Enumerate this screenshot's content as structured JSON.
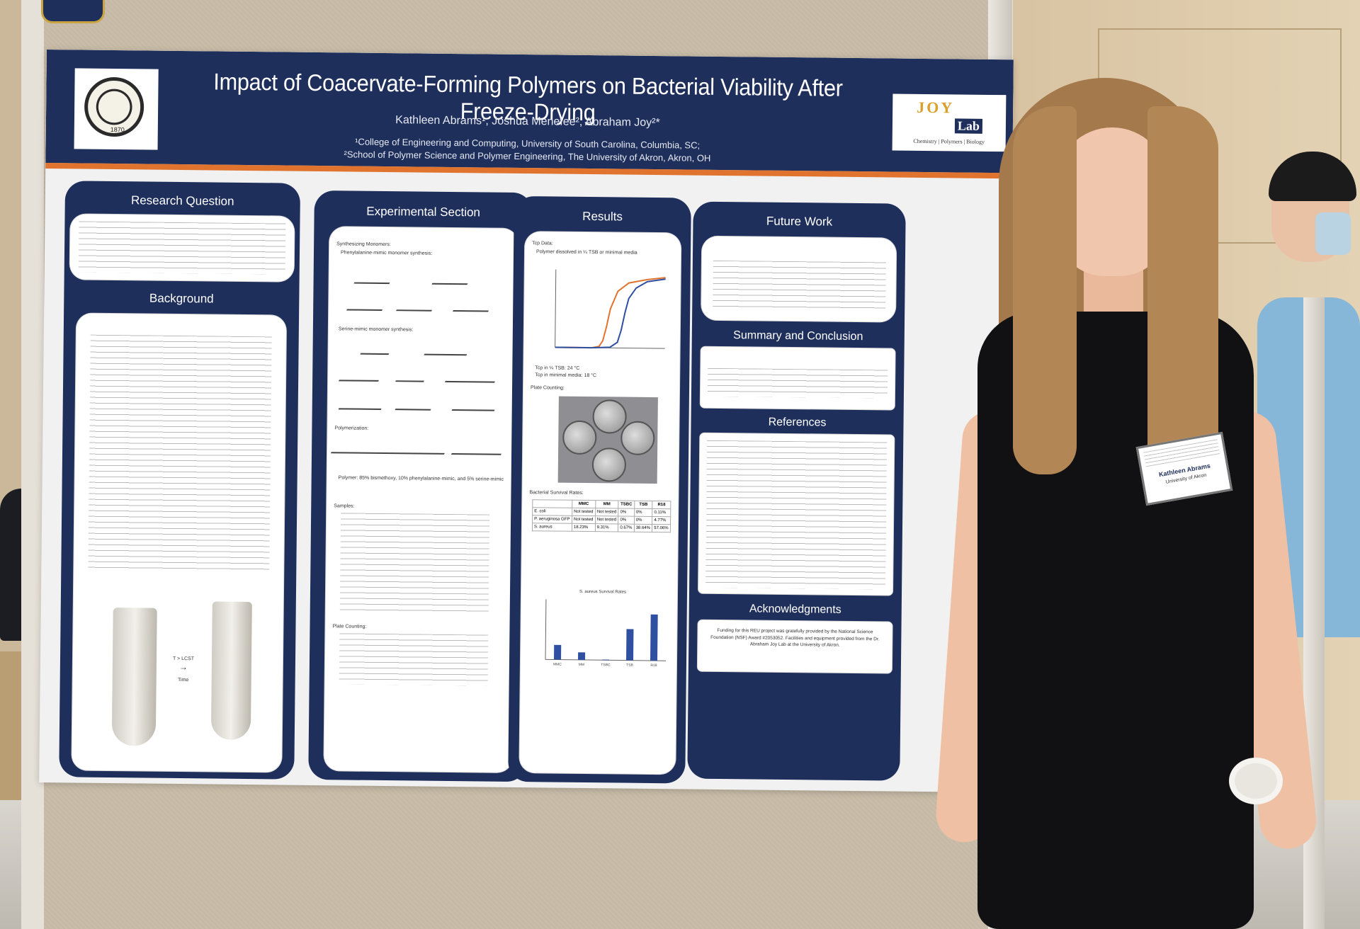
{
  "poster": {
    "title": "Impact of Coacervate-Forming Polymers on Bacterial Viability After Freeze-Drying",
    "authors": "Kathleen Abrams¹, Joshua Menefee², Abraham Joy²*",
    "affiliation_1": "¹College of Engineering and Computing, University of South Carolina, Columbia, SC;",
    "affiliation_2": "²School of Polymer Science and Polymer Engineering, The University of Akron, Akron, OH",
    "left_logo_year": "1870",
    "right_logo": {
      "joy": "JOY",
      "lab": "Lab",
      "subtitle": "Chemistry | Polymers | Biology"
    },
    "sections": {
      "research_question": "Research Question",
      "background": "Background",
      "experimental": "Experimental Section",
      "results": "Results",
      "future_work": "Future Work",
      "summary": "Summary and Conclusion",
      "references": "References",
      "acknowledgments": "Acknowledgments"
    },
    "experimental_labels": {
      "synthesizing": "Synthesizing Monomers:",
      "phenylalanine": "Phenylalanine-mimic monomer synthesis:",
      "serine": "Serine-mimic monomer synthesis:",
      "polymerization": "Polymerization:",
      "polymer": "Polymer: 85% bismethoxy, 10% phenylalanine-mimic, and 5% serine-mimic",
      "samples": "Samples:",
      "plate_counting": "Plate Counting:"
    },
    "results_labels": {
      "tcp": "Tcp Data:",
      "polymer_dissolved": "Polymer dissolved in ¼ TSB or minimal media",
      "tcp_tsb": "Tcp in ¼ TSB: 24 °C",
      "tcp_mm": "Tcp in minimal media: 18 °C",
      "plate_counting": "Plate Counting:",
      "survival": "Bacterial Survival Rates:",
      "bar_chart_title": "S. aureus Survival Rates"
    },
    "table": {
      "headers": [
        "",
        "MMC",
        "MM",
        "TSBC",
        "TSB",
        "R18"
      ],
      "rows": [
        [
          "E. coli",
          "Not tested",
          "Not tested",
          "0%",
          "0%",
          "0.11%"
        ],
        [
          "P. aeruginosa GFP",
          "Not tested",
          "Not tested",
          "0%",
          "0%",
          "4.77%"
        ],
        [
          "S. aureus",
          "18.23%",
          "9.31%",
          "0.67%",
          "38.64%",
          "57.06%"
        ]
      ]
    },
    "background_image_labels": {
      "arrow": "T > LCST",
      "time": "Time"
    },
    "acknowledgments_text": "Funding for this REU project was gratefully provided by the National Science Foundation (NSF) Award #2053052. Facilities and equipment provided from the Dr. Abraham Joy Lab at the University of Akron."
  },
  "nametag": {
    "name": "Kathleen Abrams",
    "org": "University of Akron"
  },
  "colors": {
    "poster_navy": "#1f2f5c",
    "accent_orange": "#e0742f",
    "logo_gold": "#d9a12b",
    "board": "#c9bda9"
  },
  "chart_data": [
    {
      "type": "line",
      "title": "",
      "series": [
        {
          "name": "",
          "x": [
            5,
            10,
            15,
            17,
            18,
            19,
            20,
            22,
            25,
            30,
            35
          ],
          "y": [
            0,
            0,
            0,
            2,
            10,
            30,
            55,
            80,
            92,
            97,
            100
          ]
        },
        {
          "name": "",
          "x": [
            5,
            10,
            15,
            20,
            22,
            23,
            24,
            25,
            27,
            30,
            35
          ],
          "y": [
            0,
            0,
            0,
            1,
            8,
            25,
            50,
            70,
            85,
            94,
            98
          ]
        }
      ],
      "xlabel": "",
      "ylabel": "",
      "colors": [
        "#e0742f",
        "#2f4fa0"
      ]
    },
    {
      "type": "bar",
      "title": "S. aureus Survival Rates",
      "categories": [
        "MMC",
        "MM",
        "TSBC",
        "TSB",
        "R18"
      ],
      "values": [
        18.23,
        9.31,
        0.67,
        38.64,
        57.06
      ],
      "ylim": [
        0,
        70
      ],
      "color": "#2f4fa0"
    }
  ]
}
